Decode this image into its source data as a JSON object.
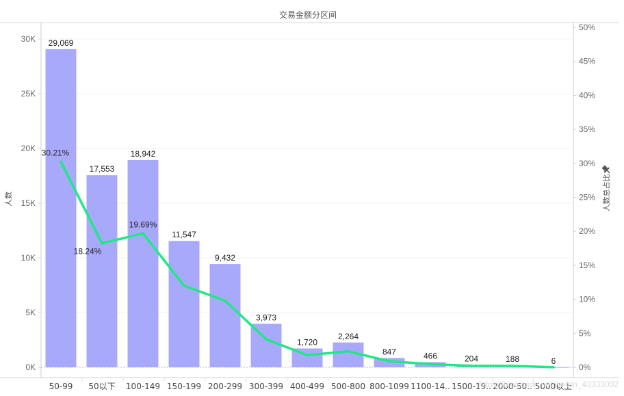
{
  "chart_data": {
    "type": "bar",
    "title": "交易金额分区间",
    "categories": [
      "50-99",
      "50以下",
      "100-149",
      "150-199",
      "200-299",
      "300-399",
      "400-499",
      "500-800",
      "800-1099",
      "1100-14..",
      "1500-19..",
      "2000-50..",
      "5000以上"
    ],
    "series": [
      {
        "name": "人数",
        "type": "bar",
        "axis": "left",
        "color": "#a9a9fb",
        "values": [
          29069,
          17553,
          18942,
          11547,
          9432,
          3973,
          1720,
          2264,
          847,
          466,
          204,
          188,
          6
        ],
        "labels": [
          "29,069",
          "17,553",
          "18,942",
          "11,547",
          "9,432",
          "3,973",
          "1,720",
          "2,264",
          "847",
          "466",
          "204",
          "188",
          "6"
        ]
      },
      {
        "name": "人数总占比",
        "type": "line",
        "axis": "right",
        "color": "#1de985",
        "values": [
          30.21,
          18.24,
          19.69,
          12.0,
          9.8,
          4.13,
          1.79,
          2.35,
          0.88,
          0.48,
          0.21,
          0.2,
          0.01
        ],
        "labels": [
          "30.21%",
          "18.24%",
          "19.69%"
        ]
      }
    ],
    "ylabel": "人数",
    "ylabel_right": "人数总占比",
    "right_axis_icon": "pin-icon",
    "ylim": [
      0,
      30000
    ],
    "ylim_right": [
      0,
      50
    ],
    "yticks": [
      "0K",
      "5K",
      "10K",
      "15K",
      "20K",
      "25K",
      "30K"
    ],
    "yticks_right": [
      "0%",
      "5%",
      "10%",
      "15%",
      "20%",
      "25%",
      "30%",
      "35%",
      "40%",
      "45%",
      "50%"
    ],
    "grid": true
  },
  "watermark": "https://blog.csdn.net/weixin_43333002"
}
